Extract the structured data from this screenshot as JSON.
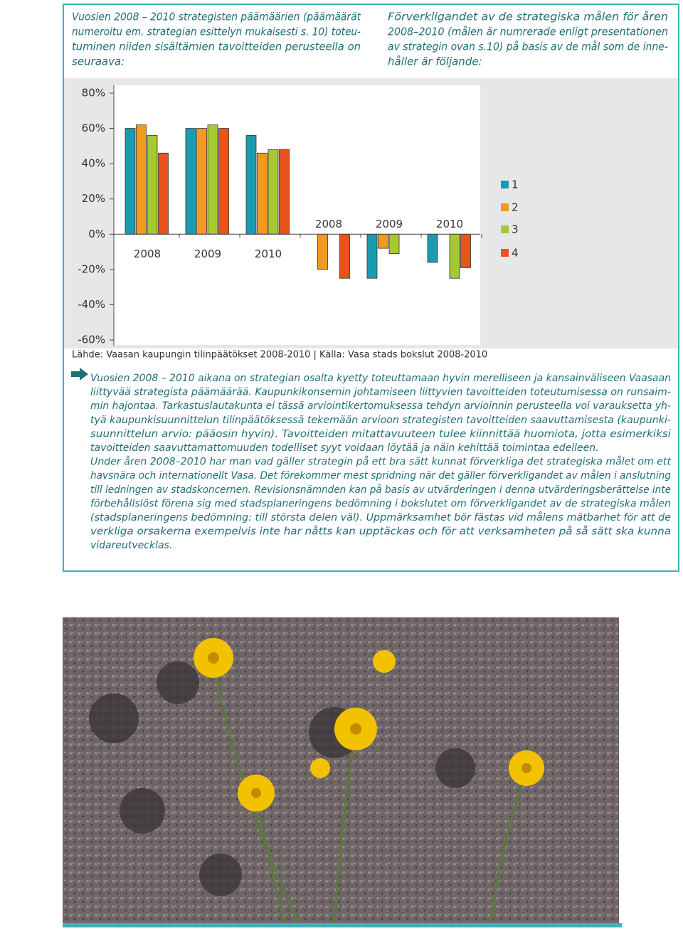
{
  "header": {
    "left": [
      "Vuosien 2008 – 2010 strategisten päämäärien (päämäärät",
      "numeroitu em. strategian esittelyn mukaisesti s. 10) toteu-",
      "tuminen niiden sisältämien tavoitteiden perusteella on",
      "seuraava:"
    ],
    "right": [
      "Förverkligandet av de strategiska målen för åren",
      "2008–2010 (målen är numrerade enligt presentationen",
      "av strategin ovan s.10) på basis av de mål som de inne-",
      "håller är följande:"
    ]
  },
  "chart_data": {
    "type": "bar",
    "categories": [
      "2008",
      "2009",
      "2010",
      "2008",
      "2009",
      "2010"
    ],
    "series": [
      {
        "name": "1",
        "color": "#1b9bb0",
        "values": [
          60,
          60,
          56,
          null,
          -25,
          -16
        ]
      },
      {
        "name": "2",
        "color": "#f29a1f",
        "values": [
          62,
          60,
          46,
          -20,
          -8,
          null
        ]
      },
      {
        "name": "3",
        "color": "#a6c832",
        "values": [
          56,
          62,
          48,
          null,
          -11,
          -25
        ]
      },
      {
        "name": "4",
        "color": "#e9531c",
        "values": [
          46,
          60,
          48,
          -25,
          null,
          -19
        ]
      }
    ],
    "ylim": [
      -60,
      80
    ],
    "yticks": [
      {
        "value": -60,
        "label": "-60%"
      },
      {
        "value": -40,
        "label": "-40%"
      },
      {
        "value": -20,
        "label": "-20%"
      },
      {
        "value": 0,
        "label": "0%"
      },
      {
        "value": 20,
        "label": "20%"
      },
      {
        "value": 40,
        "label": "40%"
      },
      {
        "value": 60,
        "label": "60%"
      },
      {
        "value": 80,
        "label": "80%"
      }
    ],
    "source": "Lähde: Vaasan kaupungin tilinpäätökset 2008-2010 | Källa: Vasa stads bokslut 2008-2010"
  },
  "body": {
    "paragraphs": [
      [
        "Vuosien 2008 – 2010 aikana on strategian osalta kyetty toteuttamaan hyvin merelliseen ja kansainväliseen Vaasaan",
        "liittyvää strategista päämäärää. Kaupunkikonsernin johtamiseen liittyvien tavoitteiden toteutumisessa on runsaim-",
        "min hajontaa. Tarkastuslautakunta ei tässä arviointikertomuksessa tehdyn arvioinnin perusteella voi varauksetta yh-",
        "tyä kaupunkisuunnittelun tilinpäätöksessä tekemään arvioon strategisten tavoitteiden saavuttamisesta (kaupunki-",
        "suunnittelun arvio: pääosin hyvin). Tavoitteiden mitattavuuteen tulee kiinnittää huomiota, jotta esimerkiksi",
        "tavoitteiden saavuttamattomuuden todelliset syyt voidaan löytää ja näin kehittää toimintaa edelleen."
      ],
      [
        "Under åren 2008–2010 har man vad gäller strategin på ett bra sätt kunnat förverkliga det strategiska målet om ett",
        "havsnära och internationellt Vasa. Det förekommer mest spridning när det gäller förverkligandet av målen i anslutning",
        "till ledningen av stadskoncernen. Revisionsnämnden kan på basis av utvärderingen i denna utvärderingsberättelse inte",
        "förbehållslöst förena sig med stadsplaneringens bedömning i bokslutet om förverkligandet av de strategiska målen",
        "(stadsplaneringens bedömning: till största delen väl). Uppmärksamhet bör fästas vid målens mätbarhet för att de",
        "verkliga orsakerna exempelvis inte har nåtts kan upptäckas och för att verksamheten på så sätt ska kunna",
        "vidareutvecklas."
      ]
    ]
  }
}
